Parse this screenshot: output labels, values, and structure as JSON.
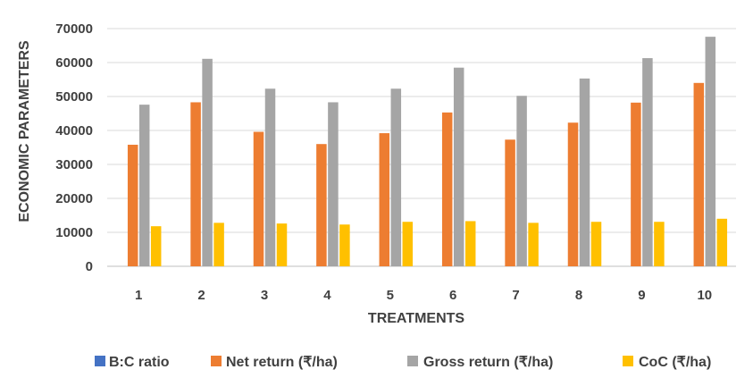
{
  "chart_data": {
    "type": "bar",
    "xlabel": "TREATMENTS",
    "ylabel": "ECONOMIC PARAMETERS",
    "ylim": [
      0,
      70000
    ],
    "yticks": [
      0,
      10000,
      20000,
      30000,
      40000,
      50000,
      60000,
      70000
    ],
    "grid": "horizontal",
    "legend_position": "bottom",
    "categories": [
      "1",
      "2",
      "3",
      "4",
      "5",
      "6",
      "7",
      "8",
      "9",
      "10"
    ],
    "series": [
      {
        "name": "B:C ratio",
        "color": "#4472C4",
        "values": [
          3.0,
          3.8,
          3.2,
          2.9,
          3.0,
          3.4,
          2.9,
          3.2,
          3.7,
          3.8
        ]
      },
      {
        "name": "Net return (₹/ha)",
        "color": "#ED7D31",
        "values": [
          35800,
          48300,
          39600,
          36000,
          39200,
          45300,
          37300,
          42300,
          48200,
          54000
        ]
      },
      {
        "name": "Gross return (₹/ha)",
        "color": "#A5A5A5",
        "values": [
          47600,
          61100,
          52300,
          48300,
          52300,
          58500,
          50200,
          55300,
          61300,
          67600
        ]
      },
      {
        "name": "CoC (₹/ha)",
        "color": "#FFC000",
        "values": [
          11800,
          12800,
          12600,
          12300,
          13100,
          13300,
          12800,
          13100,
          13100,
          14000
        ]
      }
    ]
  }
}
